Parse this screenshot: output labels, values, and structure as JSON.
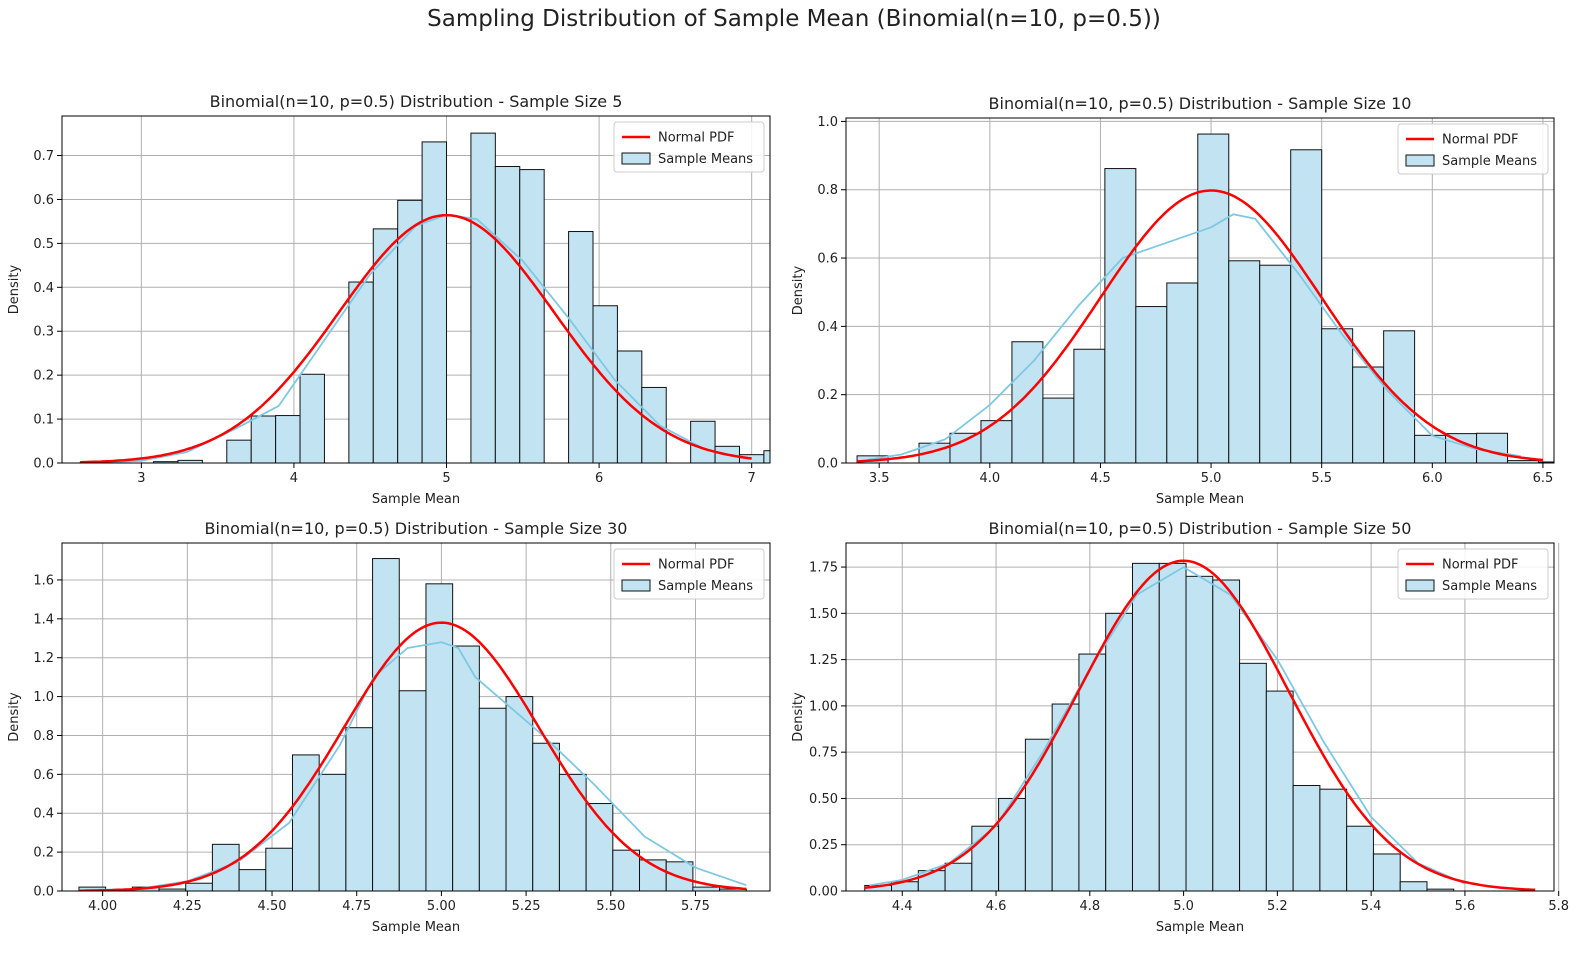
{
  "figure": {
    "suptitle": "Sampling Distribution of Sample Mean (Binomial(n=10, p=0.5))"
  },
  "colors": {
    "bar_fill": "#c2e4f2",
    "bar_edge": "#111111",
    "kde": "#7ec8e3",
    "normal": "#ff0000",
    "grid": "#b0b0b0"
  },
  "chart_data": [
    {
      "type": "bar",
      "title": "Binomial(n=10, p=0.5) Distribution - Sample Size 5",
      "xlabel": "Sample Mean",
      "ylabel": "Density",
      "xlim": [
        2.48,
        7.12
      ],
      "ylim": [
        0,
        0.79
      ],
      "xticks": [
        3,
        4,
        5,
        6,
        7
      ],
      "xtick_labels": [
        "3",
        "4",
        "5",
        "6",
        "7"
      ],
      "yticks": [
        0,
        0.1,
        0.2,
        0.3,
        0.4,
        0.5,
        0.6,
        0.7
      ],
      "ytick_labels": [
        "0.0",
        "0.1",
        "0.2",
        "0.3",
        "0.4",
        "0.5",
        "0.6",
        "0.7"
      ],
      "grid": true,
      "legend": {
        "position": "top-right",
        "entries": [
          "Normal PDF",
          "Sample Means"
        ]
      },
      "hist": {
        "bin_start": 2.6,
        "bin_width": 0.16,
        "values": [
          0.002,
          0,
          0,
          0.003,
          0.006,
          0,
          0.052,
          0.107,
          0.108,
          0.202,
          0,
          0.412,
          0.533,
          0.598,
          0.731,
          0,
          0.751,
          0.675,
          0.668,
          0,
          0.527,
          0.358,
          0.255,
          0.172,
          0,
          0.095,
          0.038,
          0.019,
          0.028
        ]
      },
      "normal_pdf": {
        "name": "Normal PDF",
        "mean": 5.0,
        "std": 0.707,
        "x_range": [
          2.6,
          7.0
        ]
      },
      "kde": {
        "x": [
          2.7,
          3.0,
          3.3,
          3.6,
          3.9,
          4.2,
          4.5,
          4.8,
          5.0,
          5.2,
          5.5,
          5.8,
          6.1,
          6.4,
          6.7,
          6.95
        ],
        "y": [
          0.001,
          0.005,
          0.025,
          0.075,
          0.13,
          0.28,
          0.43,
          0.54,
          0.565,
          0.555,
          0.46,
          0.33,
          0.19,
          0.085,
          0.03,
          0.012
        ]
      }
    },
    {
      "type": "bar",
      "title": "Binomial(n=10, p=0.5) Distribution - Sample Size 10",
      "xlabel": "Sample Mean",
      "ylabel": "Density",
      "xlim": [
        3.35,
        6.55
      ],
      "ylim": [
        0,
        1.01
      ],
      "xticks": [
        3.5,
        4.0,
        4.5,
        5.0,
        5.5,
        6.0,
        6.5
      ],
      "xtick_labels": [
        "3.5",
        "4.0",
        "4.5",
        "5.0",
        "5.5",
        "6.0",
        "6.5"
      ],
      "yticks": [
        0,
        0.2,
        0.4,
        0.6,
        0.8,
        1.0
      ],
      "ytick_labels": [
        "0.0",
        "0.2",
        "0.4",
        "0.6",
        "0.8",
        "1.0"
      ],
      "grid": true,
      "legend": {
        "position": "top-right",
        "entries": [
          "Normal PDF",
          "Sample Means"
        ]
      },
      "hist": {
        "bin_start": 3.4,
        "bin_width": 0.14,
        "values": [
          0.021,
          0,
          0.058,
          0.087,
          0.124,
          0.355,
          0.19,
          0.333,
          0.862,
          0.458,
          0.527,
          0.963,
          0.592,
          0.579,
          0.917,
          0.393,
          0.281,
          0.387,
          0.081,
          0.086,
          0.087,
          0.007,
          0.003
        ]
      },
      "normal_pdf": {
        "name": "Normal PDF",
        "mean": 5.0,
        "std": 0.5,
        "x_range": [
          3.4,
          6.5
        ]
      },
      "kde": {
        "x": [
          3.45,
          3.6,
          3.8,
          4.0,
          4.2,
          4.4,
          4.5,
          4.6,
          4.8,
          5.0,
          5.1,
          5.2,
          5.4,
          5.6,
          5.8,
          6.0,
          6.2,
          6.4
        ],
        "y": [
          0.01,
          0.025,
          0.07,
          0.17,
          0.3,
          0.46,
          0.53,
          0.6,
          0.645,
          0.69,
          0.728,
          0.715,
          0.55,
          0.37,
          0.21,
          0.08,
          0.04,
          0.02
        ]
      }
    },
    {
      "type": "bar",
      "title": "Binomial(n=10, p=0.5) Distribution - Sample Size 30",
      "xlabel": "Sample Mean",
      "ylabel": "Density",
      "xlim": [
        3.88,
        5.97
      ],
      "ylim": [
        0,
        1.79
      ],
      "xticks": [
        4.0,
        4.25,
        4.5,
        4.75,
        5.0,
        5.25,
        5.5,
        5.75
      ],
      "xtick_labels": [
        "4.00",
        "4.25",
        "4.50",
        "4.75",
        "5.00",
        "5.25",
        "5.50",
        "5.75"
      ],
      "yticks": [
        0,
        0.2,
        0.4,
        0.6,
        0.8,
        1.0,
        1.2,
        1.4,
        1.6
      ],
      "ytick_labels": [
        "0.0",
        "0.2",
        "0.4",
        "0.6",
        "0.8",
        "1.0",
        "1.2",
        "1.4",
        "1.6"
      ],
      "grid": true,
      "legend": {
        "position": "top-right",
        "entries": [
          "Normal PDF",
          "Sample Means"
        ]
      },
      "hist": {
        "bin_start": 3.93,
        "bin_width": 0.0788,
        "values": [
          0.02,
          0,
          0.02,
          0.01,
          0.04,
          0.24,
          0.11,
          0.22,
          0.7,
          0.6,
          0.84,
          1.71,
          1.03,
          1.58,
          1.26,
          0.94,
          1.0,
          0.76,
          0.6,
          0.45,
          0.21,
          0.16,
          0.15,
          0.02,
          0.01
        ]
      },
      "normal_pdf": {
        "name": "Normal PDF",
        "mean": 5.0,
        "std": 0.289,
        "x_range": [
          3.93,
          5.9
        ]
      },
      "kde": {
        "x": [
          3.95,
          4.1,
          4.25,
          4.4,
          4.55,
          4.7,
          4.8,
          4.9,
          5.0,
          5.05,
          5.1,
          5.2,
          5.3,
          5.45,
          5.6,
          5.75,
          5.9
        ],
        "y": [
          0.005,
          0.01,
          0.05,
          0.15,
          0.35,
          0.75,
          1.1,
          1.25,
          1.28,
          1.25,
          1.1,
          0.95,
          0.8,
          0.55,
          0.28,
          0.12,
          0.03
        ]
      }
    },
    {
      "type": "bar",
      "title": "Binomial(n=10, p=0.5) Distribution - Sample Size 50",
      "xlabel": "Sample Mean",
      "ylabel": "Density",
      "xlim": [
        4.28,
        5.79
      ],
      "ylim": [
        0,
        1.88
      ],
      "xticks": [
        4.4,
        4.6,
        4.8,
        5.0,
        5.2,
        5.4,
        5.6,
        5.8
      ],
      "xtick_labels": [
        "4.4",
        "4.6",
        "4.8",
        "5.0",
        "5.2",
        "5.4",
        "5.6",
        "5.8"
      ],
      "yticks": [
        0,
        0.25,
        0.5,
        0.75,
        1.0,
        1.25,
        1.5,
        1.75
      ],
      "ytick_labels": [
        "0.00",
        "0.25",
        "0.50",
        "0.75",
        "1.00",
        "1.25",
        "1.50",
        "1.75"
      ],
      "grid": true,
      "legend": {
        "position": "top-right",
        "entries": [
          "Normal PDF",
          "Sample Means"
        ]
      },
      "hist": {
        "bin_start": 4.32,
        "bin_width": 0.0571,
        "values": [
          0.03,
          0.05,
          0.11,
          0.15,
          0.35,
          0.5,
          0.82,
          1.01,
          1.28,
          1.5,
          1.77,
          1.77,
          1.7,
          1.68,
          1.23,
          1.08,
          0.57,
          0.55,
          0.35,
          0.2,
          0.05,
          0.01
        ]
      },
      "normal_pdf": {
        "name": "Normal PDF",
        "mean": 5.0,
        "std": 0.2236,
        "x_range": [
          4.32,
          5.75
        ]
      },
      "kde": {
        "x": [
          4.33,
          4.4,
          4.5,
          4.6,
          4.7,
          4.8,
          4.9,
          5.0,
          5.1,
          5.2,
          5.3,
          5.4,
          5.5,
          5.6
        ],
        "y": [
          0.03,
          0.06,
          0.15,
          0.35,
          0.75,
          1.2,
          1.6,
          1.75,
          1.6,
          1.25,
          0.8,
          0.4,
          0.15,
          0.04
        ]
      }
    }
  ]
}
